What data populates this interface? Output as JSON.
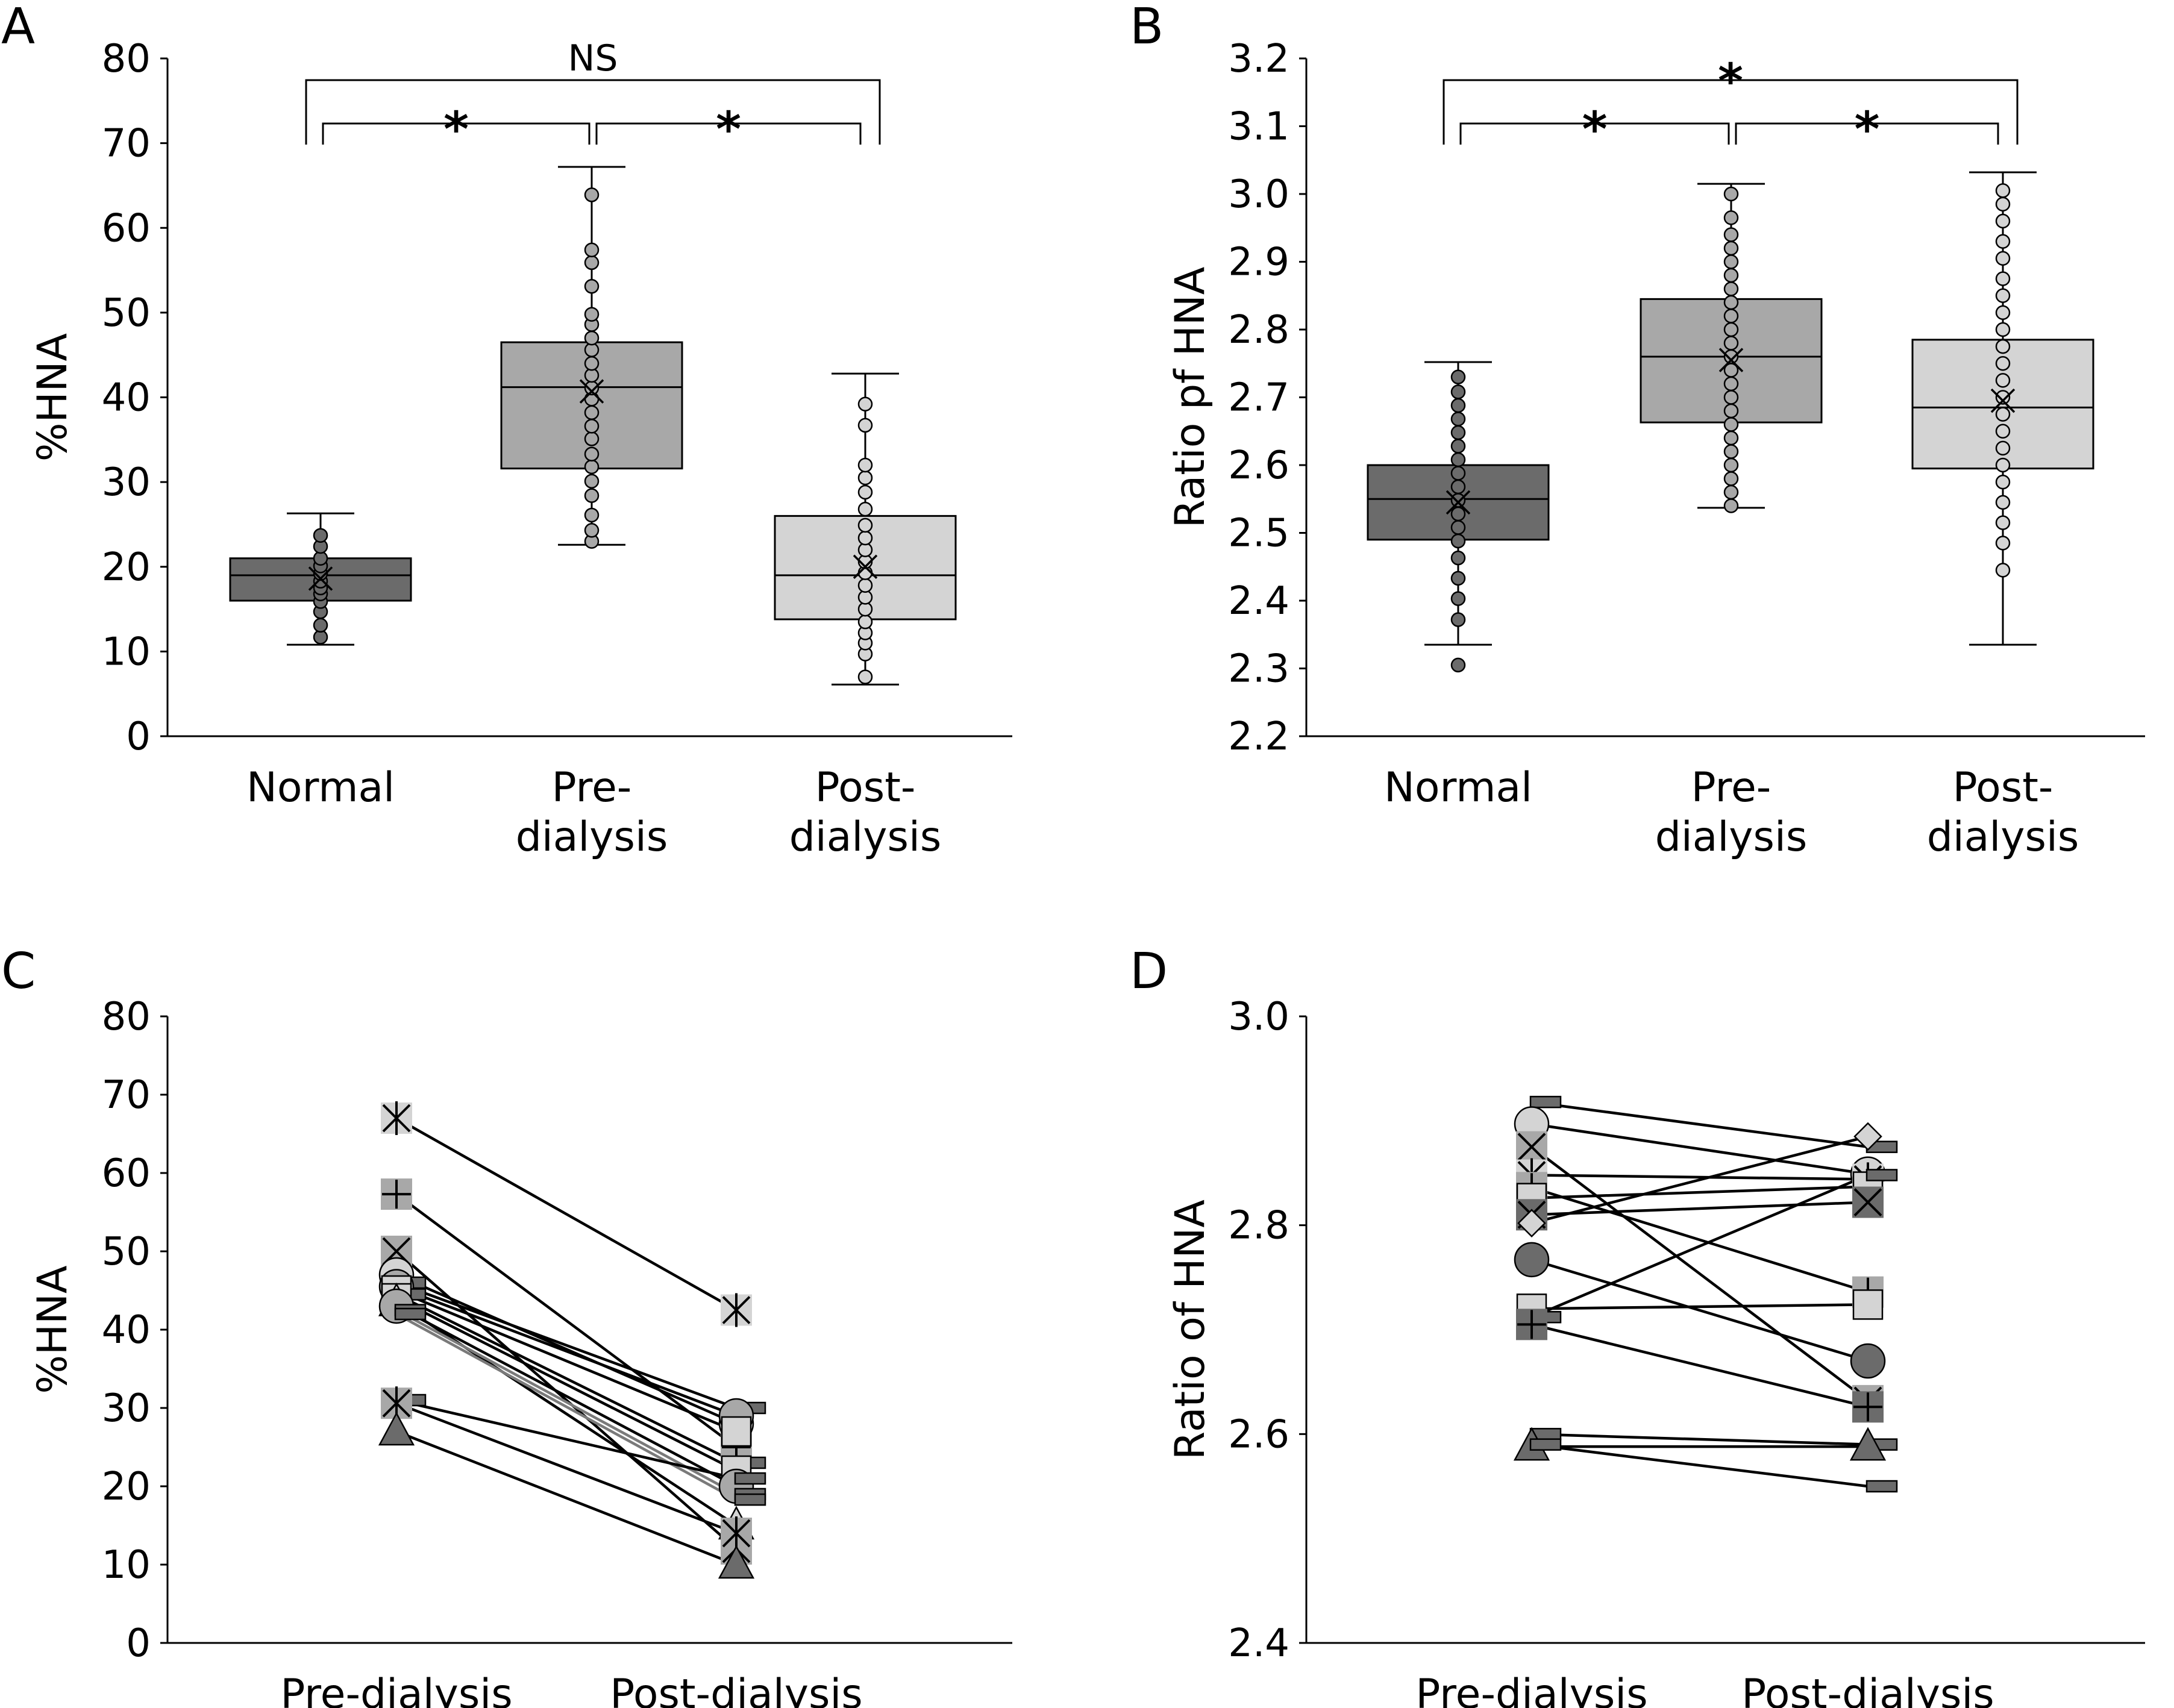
{
  "figure": {
    "panel_letters": [
      "A",
      "B",
      "C",
      "D"
    ]
  },
  "colors": {
    "normal": "#6b6b6b",
    "pre": "#a8a8a8",
    "post": "#d4d4d4",
    "line": "#000000",
    "line_gray": "#7a7a7a"
  },
  "chart_data": [
    {
      "panel": "A",
      "type": "box",
      "ylabel": "%HNA",
      "ylim": [
        0,
        80
      ],
      "yticks": [
        0,
        10,
        20,
        30,
        40,
        50,
        60,
        70,
        80
      ],
      "categories": [
        "Normal",
        "Pre-\ndialysis",
        "Post-\ndialysis"
      ],
      "groups": [
        {
          "name": "Normal",
          "color": "normal",
          "whisker_low": 10.8,
          "q1": 16,
          "median": 19,
          "q3": 21,
          "whisker_high": 26.3,
          "mean": 18.6,
          "points": [
            11.7,
            13.1,
            14.7,
            15.9,
            16.8,
            17.5,
            18.3,
            19.2,
            20.1,
            21.0,
            22.4,
            23.7
          ]
        },
        {
          "name": "Pre-dialysis",
          "color": "pre",
          "whisker_low": 22.6,
          "q1": 31.6,
          "median": 41.2,
          "q3": 46.5,
          "whisker_high": 67.2,
          "mean": 40.7,
          "points": [
            23.0,
            24.3,
            26.1,
            28.4,
            30.1,
            31.8,
            33.3,
            35.1,
            36.6,
            38.2,
            39.8,
            41.1,
            42.6,
            44.0,
            45.6,
            47.0,
            48.6,
            49.8,
            53.1,
            55.9,
            57.4,
            63.9
          ]
        },
        {
          "name": "Post-dialysis",
          "color": "post",
          "whisker_low": 6.1,
          "q1": 13.8,
          "median": 19.0,
          "q3": 26.0,
          "whisker_high": 42.8,
          "mean": 20.0,
          "points": [
            7.0,
            9.7,
            11.0,
            12.2,
            13.5,
            15.0,
            16.4,
            17.8,
            19.3,
            20.6,
            22.0,
            23.4,
            24.9,
            26.8,
            28.8,
            30.5,
            32.0,
            36.7,
            39.2
          ]
        }
      ],
      "annotations": [
        {
          "from": 0,
          "to": 2,
          "label": "NS",
          "level": 2
        },
        {
          "from": 0,
          "to": 1,
          "label": "*",
          "level": 1
        },
        {
          "from": 1,
          "to": 2,
          "label": "*",
          "level": 1
        }
      ]
    },
    {
      "panel": "B",
      "type": "box",
      "ylabel": "Ratio pf HNA",
      "ylim": [
        2.2,
        3.2
      ],
      "yticks": [
        2.2,
        2.3,
        2.4,
        2.5,
        2.6,
        2.7,
        2.8,
        2.9,
        3.0,
        3.1,
        3.2
      ],
      "categories": [
        "Normal",
        "Pre-\ndialysis",
        "Post-\ndialysis"
      ],
      "groups": [
        {
          "name": "Normal",
          "color": "normal",
          "whisker_low": 2.335,
          "q1": 2.49,
          "median": 2.55,
          "q3": 2.6,
          "whisker_high": 2.752,
          "mean": 2.545,
          "points": [
            2.305,
            2.372,
            2.403,
            2.433,
            2.463,
            2.488,
            2.508,
            2.528,
            2.548,
            2.568,
            2.588,
            2.608,
            2.628,
            2.648,
            2.668,
            2.688,
            2.708,
            2.73
          ]
        },
        {
          "name": "Pre-dialysis",
          "color": "pre",
          "whisker_low": 2.537,
          "q1": 2.663,
          "median": 2.76,
          "q3": 2.845,
          "whisker_high": 3.015,
          "mean": 2.755,
          "points": [
            2.54,
            2.56,
            2.58,
            2.6,
            2.62,
            2.64,
            2.66,
            2.68,
            2.7,
            2.72,
            2.74,
            2.76,
            2.78,
            2.8,
            2.82,
            2.84,
            2.86,
            2.88,
            2.9,
            2.92,
            2.94,
            2.965,
            3.0
          ]
        },
        {
          "name": "Post-dialysis",
          "color": "post",
          "whisker_low": 2.335,
          "q1": 2.595,
          "median": 2.685,
          "q3": 2.785,
          "whisker_high": 3.032,
          "mean": 2.695,
          "points": [
            2.445,
            2.485,
            2.515,
            2.545,
            2.575,
            2.6,
            2.625,
            2.65,
            2.675,
            2.7,
            2.725,
            2.75,
            2.775,
            2.8,
            2.825,
            2.85,
            2.875,
            2.905,
            2.93,
            2.96,
            2.985,
            3.005
          ]
        }
      ],
      "annotations": [
        {
          "from": 0,
          "to": 2,
          "label": "*",
          "level": 2
        },
        {
          "from": 0,
          "to": 1,
          "label": "*",
          "level": 1
        },
        {
          "from": 1,
          "to": 2,
          "label": "*",
          "level": 1
        }
      ]
    },
    {
      "panel": "C",
      "type": "line",
      "ylabel": "%HNA",
      "ylim": [
        0,
        80
      ],
      "yticks": [
        0,
        10,
        20,
        30,
        40,
        50,
        60,
        70,
        80
      ],
      "categories": [
        "Pre-dialysis",
        "Post-dialysis"
      ],
      "pairs": [
        {
          "pre": 67.0,
          "post": 42.5,
          "marker": "asterisk",
          "color": "post",
          "line": "line"
        },
        {
          "pre": 57.3,
          "post": 25.0,
          "marker": "plus",
          "color": "pre",
          "line": "line"
        },
        {
          "pre": 50.0,
          "post": 12.0,
          "marker": "xbox",
          "color": "pre",
          "line": "line"
        },
        {
          "pre": 47.0,
          "post": 28.0,
          "marker": "circle",
          "color": "post",
          "line": "line"
        },
        {
          "pre": 46.0,
          "post": 30.0,
          "marker": "dash",
          "color": "normal",
          "line": "line"
        },
        {
          "pre": 45.5,
          "post": 29.0,
          "marker": "circle",
          "color": "pre",
          "line": "line"
        },
        {
          "pre": 45.0,
          "post": 27.0,
          "marker": "square",
          "color": "post",
          "line": "line"
        },
        {
          "pre": 44.5,
          "post": 23.0,
          "marker": "dash",
          "color": "normal",
          "line": "line"
        },
        {
          "pre": 44.0,
          "post": 22.0,
          "marker": "square",
          "color": "post",
          "line": "line"
        },
        {
          "pre": 43.5,
          "post": 15.0,
          "marker": "triangle",
          "color": "post",
          "line": "line"
        },
        {
          "pre": 43.0,
          "post": 20.0,
          "marker": "circle",
          "color": "pre",
          "line": "line"
        },
        {
          "pre": 42.5,
          "post": 19.0,
          "marker": "dash",
          "color": "normal",
          "line": "line_gray"
        },
        {
          "pre": 42.0,
          "post": 18.3,
          "marker": "dash",
          "color": "normal",
          "line": "line_gray"
        },
        {
          "pre": 31.0,
          "post": 21.0,
          "marker": "dash",
          "color": "normal",
          "line": "line"
        },
        {
          "pre": 30.6,
          "post": 14.0,
          "marker": "asterisk",
          "color": "pre",
          "line": "line"
        },
        {
          "pre": 27.0,
          "post": 10.0,
          "marker": "triangle",
          "color": "normal",
          "line": "line"
        }
      ]
    },
    {
      "panel": "D",
      "type": "line",
      "ylabel": "Ratio of HNA",
      "ylim": [
        2.4,
        3.0
      ],
      "yticks": [
        2.4,
        2.6,
        2.8,
        3.0
      ],
      "categories": [
        "Pre-dialysis",
        "Post-dialysis"
      ],
      "pairs": [
        {
          "pre": 2.918,
          "post": 2.875,
          "marker": "dash",
          "color": "normal",
          "line": "line"
        },
        {
          "pre": 2.897,
          "post": 2.849,
          "marker": "circle",
          "color": "post",
          "line": "line"
        },
        {
          "pre": 2.875,
          "post": 2.632,
          "marker": "xbox",
          "color": "pre",
          "line": "line"
        },
        {
          "pre": 2.848,
          "post": 2.844,
          "marker": "asterisk",
          "color": "post",
          "line": "line"
        },
        {
          "pre": 2.836,
          "post": 2.736,
          "marker": "plus",
          "color": "pre",
          "line": "line"
        },
        {
          "pre": 2.826,
          "post": 2.837,
          "marker": "square",
          "color": "post",
          "line": "line"
        },
        {
          "pre": 2.81,
          "post": 2.822,
          "marker": "xbox",
          "color": "normal",
          "line": "line"
        },
        {
          "pre": 2.802,
          "post": 2.885,
          "marker": "diamond",
          "color": "post",
          "line": "line"
        },
        {
          "pre": 2.767,
          "post": 2.67,
          "marker": "circle",
          "color": "normal",
          "line": "line"
        },
        {
          "pre": 2.72,
          "post": 2.724,
          "marker": "square",
          "color": "post",
          "line": "line"
        },
        {
          "pre": 2.712,
          "post": 2.848,
          "marker": "dash",
          "color": "normal",
          "line": "line"
        },
        {
          "pre": 2.705,
          "post": 2.626,
          "marker": "plus",
          "color": "normal",
          "line": "line"
        },
        {
          "pre": 2.6,
          "post": 2.59,
          "marker": "dash",
          "color": "normal",
          "line": "line"
        },
        {
          "pre": 2.588,
          "post": 2.588,
          "marker": "triangle",
          "color": "normal",
          "line": "line"
        },
        {
          "pre": 2.59,
          "post": 2.55,
          "marker": "dash",
          "color": "normal",
          "line": "line"
        }
      ]
    }
  ]
}
